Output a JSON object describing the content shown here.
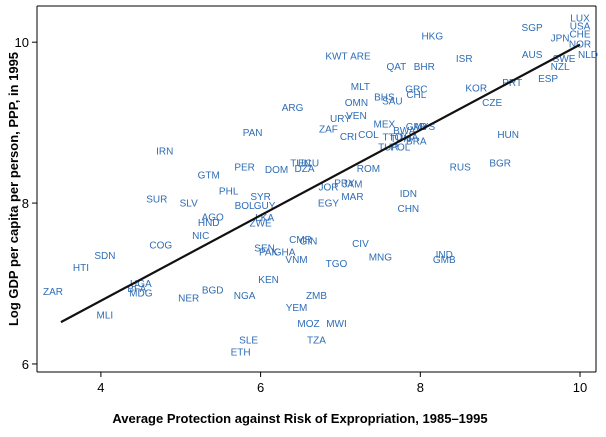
{
  "chart_data": {
    "type": "scatter",
    "xlabel": "Average Protection against Risk of Expropriation, 1985–1995",
    "ylabel": "Log GDP per capita per person, PPP, in 1995",
    "xlim": [
      3.2,
      10.2
    ],
    "ylim": [
      5.9,
      10.45
    ],
    "xticks": [
      4,
      6,
      8,
      10
    ],
    "yticks": [
      6,
      8,
      10
    ],
    "grid": false,
    "fit_line": {
      "x": [
        3.5,
        10.0
      ],
      "y": [
        6.52,
        9.97
      ]
    },
    "points": [
      {
        "label": "LUX",
        "x": 10.0,
        "y": 10.3
      },
      {
        "label": "USA",
        "x": 10.0,
        "y": 10.2
      },
      {
        "label": "CHE",
        "x": 10.0,
        "y": 10.1
      },
      {
        "label": "SGP",
        "x": 9.4,
        "y": 10.18
      },
      {
        "label": "HKG",
        "x": 8.15,
        "y": 10.08
      },
      {
        "label": "JPN",
        "x": 9.75,
        "y": 10.05
      },
      {
        "label": "NOR",
        "x": 10.0,
        "y": 9.98
      },
      {
        "label": "AUS",
        "x": 9.4,
        "y": 9.85
      },
      {
        "label": "SWE",
        "x": 9.8,
        "y": 9.8
      },
      {
        "label": "NLD",
        "x": 10.1,
        "y": 9.85
      },
      {
        "label": "NZL",
        "x": 9.75,
        "y": 9.7
      },
      {
        "label": "ESP",
        "x": 9.6,
        "y": 9.55
      },
      {
        "label": "KWT",
        "x": 6.95,
        "y": 9.83
      },
      {
        "label": "ARE",
        "x": 7.25,
        "y": 9.83
      },
      {
        "label": "ISR",
        "x": 8.55,
        "y": 9.8
      },
      {
        "label": "QAT",
        "x": 7.7,
        "y": 9.7
      },
      {
        "label": "BHR",
        "x": 8.05,
        "y": 9.7
      },
      {
        "label": "PRT",
        "x": 9.15,
        "y": 9.5
      },
      {
        "label": "KOR",
        "x": 8.7,
        "y": 9.43
      },
      {
        "label": "MLT",
        "x": 7.25,
        "y": 9.45
      },
      {
        "label": "GRC",
        "x": 7.95,
        "y": 9.42
      },
      {
        "label": "CHL",
        "x": 7.95,
        "y": 9.35
      },
      {
        "label": "BHS",
        "x": 7.55,
        "y": 9.32
      },
      {
        "label": "SAU",
        "x": 7.65,
        "y": 9.27
      },
      {
        "label": "OMN",
        "x": 7.2,
        "y": 9.25
      },
      {
        "label": "CZE",
        "x": 8.9,
        "y": 9.25
      },
      {
        "label": "ARG",
        "x": 6.4,
        "y": 9.19
      },
      {
        "label": "VEN",
        "x": 7.2,
        "y": 9.09
      },
      {
        "label": "URY",
        "x": 7.0,
        "y": 9.05
      },
      {
        "label": "MEX",
        "x": 7.55,
        "y": 8.98
      },
      {
        "label": "GAB",
        "x": 7.95,
        "y": 8.95
      },
      {
        "label": "MYS",
        "x": 8.05,
        "y": 8.95
      },
      {
        "label": "ZAF",
        "x": 6.85,
        "y": 8.92
      },
      {
        "label": "PAN",
        "x": 5.9,
        "y": 8.88
      },
      {
        "label": "BWA",
        "x": 7.8,
        "y": 8.9
      },
      {
        "label": "HUN",
        "x": 9.1,
        "y": 8.85
      },
      {
        "label": "CRI",
        "x": 7.1,
        "y": 8.83
      },
      {
        "label": "COL",
        "x": 7.35,
        "y": 8.85
      },
      {
        "label": "TTO",
        "x": 7.65,
        "y": 8.82
      },
      {
        "label": "TUN",
        "x": 7.75,
        "y": 8.8
      },
      {
        "label": "THA",
        "x": 7.85,
        "y": 8.82
      },
      {
        "label": "BRA",
        "x": 7.95,
        "y": 8.77
      },
      {
        "label": "TUR",
        "x": 7.6,
        "y": 8.7
      },
      {
        "label": "POL",
        "x": 7.75,
        "y": 8.7
      },
      {
        "label": "IRN",
        "x": 4.8,
        "y": 8.65
      },
      {
        "label": "GTM",
        "x": 5.35,
        "y": 8.35
      },
      {
        "label": "TUN",
        "x": 6.5,
        "y": 8.5
      },
      {
        "label": "PER",
        "x": 5.8,
        "y": 8.45
      },
      {
        "label": "DOM",
        "x": 6.2,
        "y": 8.42
      },
      {
        "label": "DZA",
        "x": 6.55,
        "y": 8.43
      },
      {
        "label": "ECU",
        "x": 6.6,
        "y": 8.5
      },
      {
        "label": "RUS",
        "x": 8.5,
        "y": 8.45
      },
      {
        "label": "BGR",
        "x": 9.0,
        "y": 8.5
      },
      {
        "label": "ROM",
        "x": 7.35,
        "y": 8.43
      },
      {
        "label": "PRY",
        "x": 7.05,
        "y": 8.25
      },
      {
        "label": "JOR",
        "x": 6.85,
        "y": 8.2
      },
      {
        "label": "JAM",
        "x": 7.15,
        "y": 8.24
      },
      {
        "label": "IDN",
        "x": 7.85,
        "y": 8.12
      },
      {
        "label": "PHL",
        "x": 5.6,
        "y": 8.15
      },
      {
        "label": "SYR",
        "x": 6.0,
        "y": 8.08
      },
      {
        "label": "MAR",
        "x": 7.15,
        "y": 8.08
      },
      {
        "label": "SUR",
        "x": 4.7,
        "y": 8.05
      },
      {
        "label": "SLV",
        "x": 5.1,
        "y": 8.0
      },
      {
        "label": "BOL",
        "x": 5.8,
        "y": 7.97
      },
      {
        "label": "GUY",
        "x": 6.05,
        "y": 7.97
      },
      {
        "label": "EGY",
        "x": 6.85,
        "y": 8.0
      },
      {
        "label": "CHN",
        "x": 7.85,
        "y": 7.93
      },
      {
        "label": "AGO",
        "x": 5.4,
        "y": 7.83
      },
      {
        "label": "HND",
        "x": 5.35,
        "y": 7.76
      },
      {
        "label": "LKA",
        "x": 6.05,
        "y": 7.82
      },
      {
        "label": "ZWE",
        "x": 6.0,
        "y": 7.75
      },
      {
        "label": "NIC",
        "x": 5.25,
        "y": 7.6
      },
      {
        "label": "COG",
        "x": 4.75,
        "y": 7.48
      },
      {
        "label": "SDN",
        "x": 4.05,
        "y": 7.35
      },
      {
        "label": "CMR",
        "x": 6.5,
        "y": 7.55
      },
      {
        "label": "GIN",
        "x": 6.6,
        "y": 7.53
      },
      {
        "label": "CIV",
        "x": 7.25,
        "y": 7.5
      },
      {
        "label": "SEN",
        "x": 6.05,
        "y": 7.44
      },
      {
        "label": "PAK",
        "x": 6.1,
        "y": 7.39
      },
      {
        "label": "GHA",
        "x": 6.3,
        "y": 7.39
      },
      {
        "label": "VNM",
        "x": 6.45,
        "y": 7.3
      },
      {
        "label": "TGO",
        "x": 6.95,
        "y": 7.25
      },
      {
        "label": "MNG",
        "x": 7.5,
        "y": 7.33
      },
      {
        "label": "IND",
        "x": 8.3,
        "y": 7.36
      },
      {
        "label": "GMB",
        "x": 8.3,
        "y": 7.3
      },
      {
        "label": "HTI",
        "x": 3.75,
        "y": 7.2
      },
      {
        "label": "KEN",
        "x": 6.1,
        "y": 7.05
      },
      {
        "label": "UGA",
        "x": 4.5,
        "y": 7.0
      },
      {
        "label": "BFA",
        "x": 4.45,
        "y": 6.94
      },
      {
        "label": "MDG",
        "x": 4.5,
        "y": 6.88
      },
      {
        "label": "ZAR",
        "x": 3.4,
        "y": 6.9
      },
      {
        "label": "BGD",
        "x": 5.4,
        "y": 6.92
      },
      {
        "label": "NER",
        "x": 5.1,
        "y": 6.82
      },
      {
        "label": "NGA",
        "x": 5.8,
        "y": 6.85
      },
      {
        "label": "ZMB",
        "x": 6.7,
        "y": 6.85
      },
      {
        "label": "MLI",
        "x": 4.05,
        "y": 6.61
      },
      {
        "label": "YEM",
        "x": 6.45,
        "y": 6.7
      },
      {
        "label": "MOZ",
        "x": 6.6,
        "y": 6.5
      },
      {
        "label": "MWI",
        "x": 6.95,
        "y": 6.5
      },
      {
        "label": "TZA",
        "x": 6.7,
        "y": 6.3
      },
      {
        "label": "SLE",
        "x": 5.85,
        "y": 6.3
      },
      {
        "label": "ETH",
        "x": 5.75,
        "y": 6.15
      }
    ]
  }
}
